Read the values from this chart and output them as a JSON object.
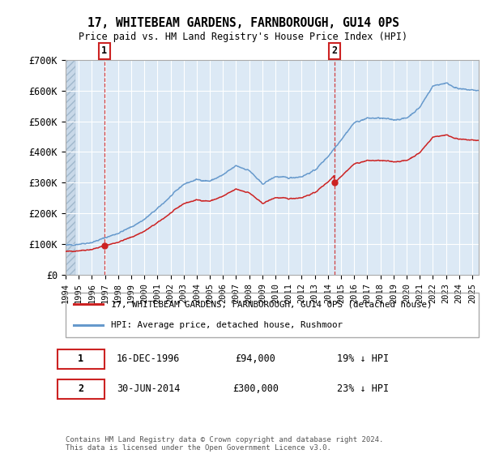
{
  "title1": "17, WHITEBEAM GARDENS, FARNBOROUGH, GU14 0PS",
  "title2": "Price paid vs. HM Land Registry's House Price Index (HPI)",
  "ylim": [
    0,
    700000
  ],
  "xlim_start": 1994.0,
  "xlim_end": 2025.5,
  "plot_bg_color": "#dce9f5",
  "grid_color": "#ffffff",
  "red_line_color": "#cc2222",
  "blue_line_color": "#6699cc",
  "marker1_date": 1996.96,
  "marker1_value": 94000,
  "marker2_date": 2014.5,
  "marker2_value": 300000,
  "legend_label_red": "17, WHITEBEAM GARDENS, FARNBOROUGH, GU14 0PS (detached house)",
  "legend_label_blue": "HPI: Average price, detached house, Rushmoor",
  "annotation1_date_text": "16-DEC-1996",
  "annotation1_price_text": "£94,000",
  "annotation1_hpi_text": "19% ↓ HPI",
  "annotation2_date_text": "30-JUN-2014",
  "annotation2_price_text": "£300,000",
  "annotation2_hpi_text": "23% ↓ HPI",
  "footnote": "Contains HM Land Registry data © Crown copyright and database right 2024.\nThis data is licensed under the Open Government Licence v3.0.",
  "yticks": [
    0,
    100000,
    200000,
    300000,
    400000,
    500000,
    600000,
    700000
  ],
  "ytick_labels": [
    "£0",
    "£100K",
    "£200K",
    "£300K",
    "£400K",
    "£500K",
    "£600K",
    "£700K"
  ],
  "hpi_base_years": [
    1994.0,
    1995.0,
    1996.0,
    1997.0,
    1998.0,
    1999.0,
    2000.0,
    2001.0,
    2002.0,
    2003.0,
    2004.0,
    2005.0,
    2006.0,
    2007.0,
    2008.0,
    2009.0,
    2010.0,
    2011.0,
    2012.0,
    2013.0,
    2014.0,
    2015.0,
    2016.0,
    2017.0,
    2018.0,
    2019.0,
    2020.0,
    2021.0,
    2022.0,
    2023.0,
    2024.0,
    2025.5
  ],
  "hpi_base_vals": [
    95000,
    100000,
    105000,
    120000,
    135000,
    155000,
    180000,
    215000,
    255000,
    295000,
    310000,
    305000,
    325000,
    355000,
    340000,
    295000,
    320000,
    315000,
    320000,
    340000,
    385000,
    440000,
    495000,
    510000,
    510000,
    505000,
    510000,
    545000,
    615000,
    625000,
    605000,
    600000
  ]
}
